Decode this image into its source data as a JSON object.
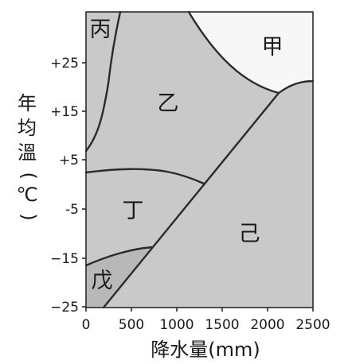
{
  "axes": {
    "x_label": "降水量(mm)",
    "y_label": [
      "年",
      "均",
      "溫",
      "(",
      "℃",
      ")"
    ],
    "x_ticks": [
      "0",
      "500",
      "1000",
      "1500",
      "2000",
      "2500"
    ],
    "y_ticks": [
      "+25",
      "+15",
      "+5",
      "-5",
      "−15",
      "−25"
    ]
  },
  "regions": {
    "jia": "甲",
    "yi": "乙",
    "bing": "丙",
    "ding": "丁",
    "wu": "戊",
    "ji": "己"
  },
  "colors": {
    "region_fill": "#c9c9c9",
    "light_region_fill": "#f7f7f7",
    "line": "#2b2b2b"
  }
}
